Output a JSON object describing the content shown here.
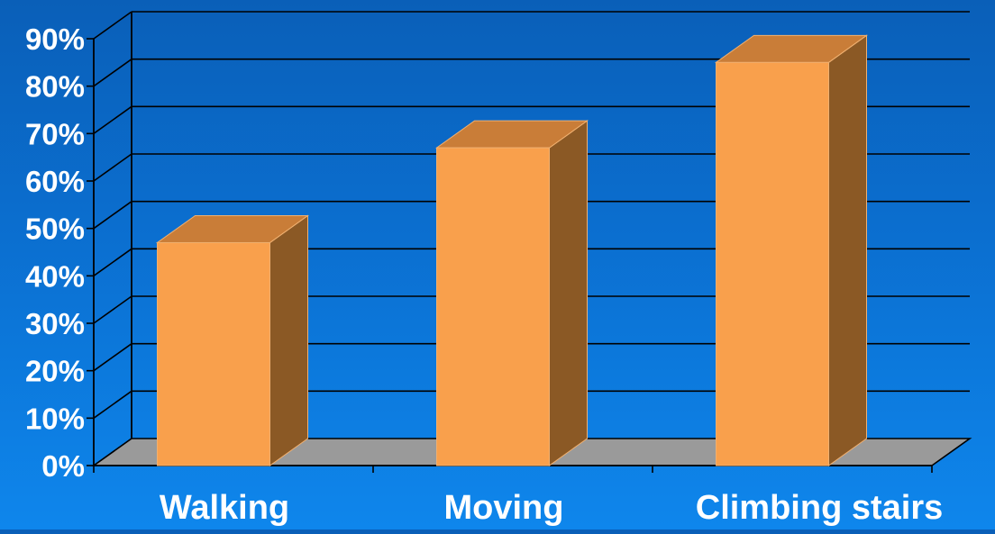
{
  "chart_data": {
    "type": "bar",
    "title": "",
    "xlabel": "",
    "ylabel": "",
    "categories": [
      "Walking",
      "Moving",
      "Climbing stairs"
    ],
    "values": [
      47,
      67,
      85
    ],
    "ylim": [
      0,
      90
    ],
    "y_ticks": [
      "0%",
      "10%",
      "20%",
      "30%",
      "40%",
      "50%",
      "60%",
      "70%",
      "80%",
      "90%"
    ],
    "grid": true,
    "three_d": true,
    "colors": {
      "bar_front": "#f9a04c",
      "bar_top": "#c97d38",
      "bar_side": "#8b5925",
      "floor": "#9a9a9a",
      "background": "#0b6fd0"
    }
  }
}
